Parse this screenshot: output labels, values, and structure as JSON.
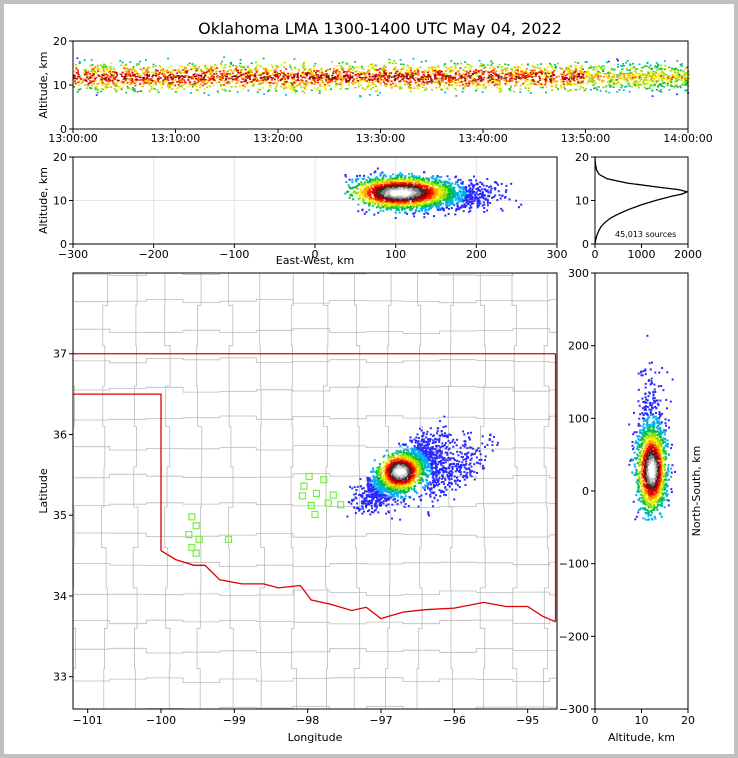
{
  "title": "Oklahoma LMA 1300-1400 UTC May 04, 2022",
  "colors": {
    "outline": "#000000",
    "state_border": "#dd0000",
    "county": "#bbbbbb",
    "station": "#77ee44",
    "grid": "#e6e6e6"
  },
  "chart_data": [
    {
      "id": "time-altitude",
      "type": "heatmap",
      "ylabel": "Altitude, km",
      "xlabel": "",
      "xlim": [
        "13:00:00",
        "14:00:00"
      ],
      "ylim": [
        0,
        20
      ],
      "x_ticks": [
        "13:00:00",
        "13:10:00",
        "13:20:00",
        "13:30:00",
        "13:40:00",
        "13:50:00",
        "14:00:00"
      ],
      "y_ticks": [
        0,
        10,
        20
      ],
      "source_altitude_center_km": 12,
      "source_altitude_range_km": [
        4,
        19
      ]
    },
    {
      "id": "eastwest-altitude",
      "type": "heatmap",
      "ylabel": "Altitude, km",
      "xlabel": "East-West, km",
      "xlim": [
        -300,
        300
      ],
      "ylim": [
        0,
        20
      ],
      "x_ticks": [
        -300,
        -200,
        -100,
        0,
        100,
        200,
        300
      ],
      "y_ticks": [
        0,
        10,
        20
      ],
      "core_center": {
        "x_km": 105,
        "alt_km": 12
      }
    },
    {
      "id": "altitude-histogram",
      "type": "line",
      "xlabel": "",
      "ylabel": "",
      "xlim": [
        0,
        2000
      ],
      "ylim": [
        0,
        20
      ],
      "x_ticks": [
        0,
        1000,
        2000
      ],
      "y_ticks": [
        0,
        10,
        20
      ],
      "annotation": "45,013 sources",
      "series": [
        {
          "altitude_km": [
            0,
            1,
            2,
            3,
            4,
            5,
            6,
            7,
            8,
            9,
            10,
            11,
            11.5,
            12,
            12.5,
            13,
            14,
            15,
            16,
            17,
            18,
            19,
            20
          ],
          "count": [
            0,
            15,
            40,
            80,
            130,
            220,
            340,
            520,
            740,
            1000,
            1300,
            1650,
            1880,
            1980,
            1800,
            1400,
            700,
            260,
            90,
            35,
            15,
            5,
            0
          ]
        }
      ]
    },
    {
      "id": "plan-view",
      "type": "heatmap",
      "xlabel": "Longitude",
      "ylabel": "Latitude",
      "xlim": [
        -101.2,
        -94.6
      ],
      "ylim": [
        32.6,
        38.0
      ],
      "x_ticks": [
        -101,
        -100,
        -99,
        -98,
        -97,
        -96,
        -95
      ],
      "y_ticks": [
        33,
        34,
        35,
        36,
        37
      ],
      "core_center": {
        "lon": -96.75,
        "lat": 35.55
      },
      "stations": [
        {
          "lon": -99.58,
          "lat": 34.98
        },
        {
          "lon": -99.52,
          "lat": 34.87
        },
        {
          "lon": -99.62,
          "lat": 34.76
        },
        {
          "lon": -99.48,
          "lat": 34.7
        },
        {
          "lon": -99.58,
          "lat": 34.6
        },
        {
          "lon": -99.52,
          "lat": 34.53
        },
        {
          "lon": -99.08,
          "lat": 34.7
        },
        {
          "lon": -97.98,
          "lat": 35.48
        },
        {
          "lon": -98.05,
          "lat": 35.36
        },
        {
          "lon": -98.07,
          "lat": 35.24
        },
        {
          "lon": -97.88,
          "lat": 35.27
        },
        {
          "lon": -97.95,
          "lat": 35.12
        },
        {
          "lon": -97.9,
          "lat": 35.01
        },
        {
          "lon": -97.78,
          "lat": 35.44
        },
        {
          "lon": -97.65,
          "lat": 35.25
        },
        {
          "lon": -97.72,
          "lat": 35.15
        },
        {
          "lon": -97.55,
          "lat": 35.13
        }
      ]
    },
    {
      "id": "altitude-northsouth",
      "type": "heatmap",
      "xlabel": "Altitude, km",
      "ylabel": "North-South, km",
      "xlim": [
        0,
        20
      ],
      "ylim": [
        -300,
        300
      ],
      "x_ticks": [
        0,
        10,
        20
      ],
      "y_ticks": [
        -300,
        -200,
        -100,
        0,
        100,
        200,
        300
      ],
      "core_center": {
        "alt_km": 12,
        "y_km": 30
      }
    }
  ]
}
